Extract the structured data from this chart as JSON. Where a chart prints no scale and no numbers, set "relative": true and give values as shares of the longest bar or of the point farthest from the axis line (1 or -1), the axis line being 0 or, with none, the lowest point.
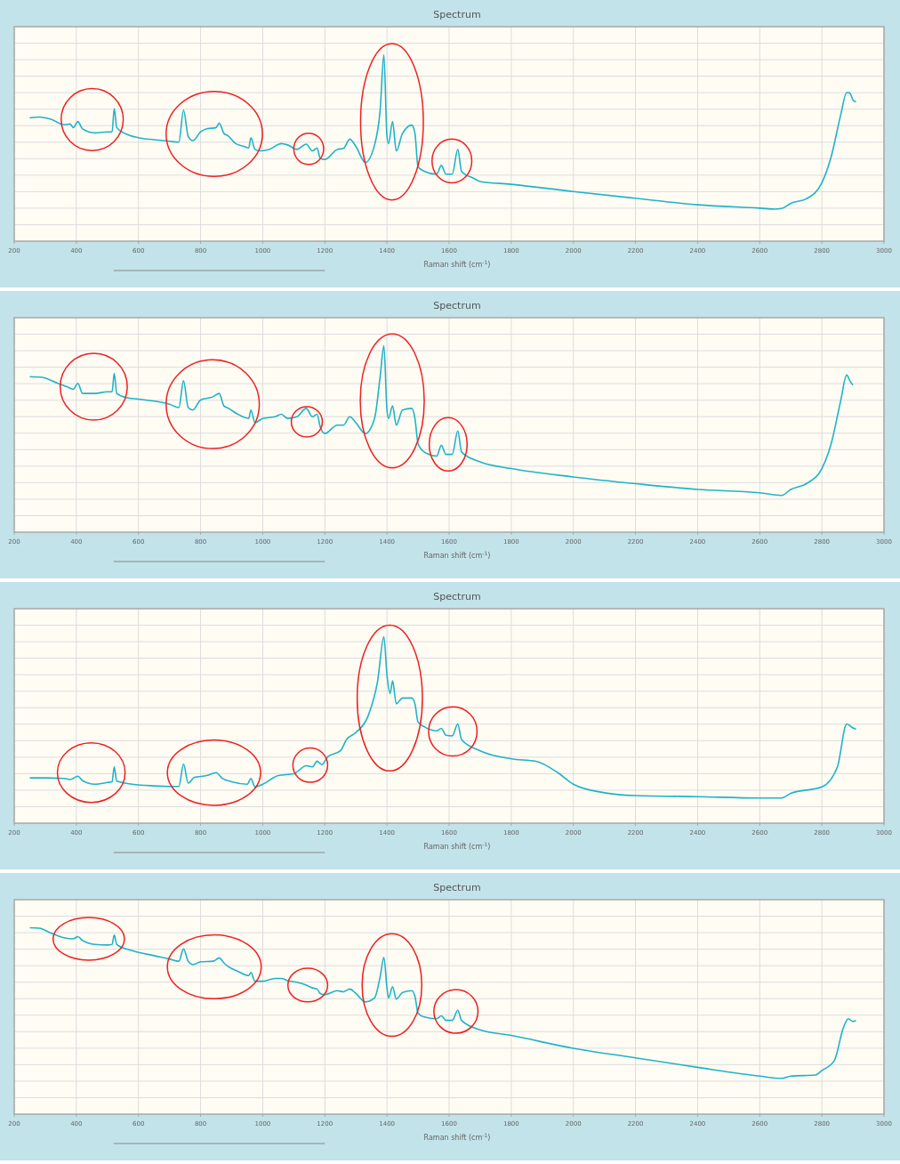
{
  "chart_data": [
    {
      "type": "line",
      "title": "Spectrum",
      "xlabel": "Raman shift (cm$^{-1}$)",
      "relative": true,
      "xlim": [
        200,
        3000
      ],
      "xticks": [
        200,
        400,
        600,
        800,
        1000,
        1200,
        1400,
        1600,
        1800,
        2000,
        2200,
        2400,
        2600,
        2800,
        3000
      ],
      "grid": true,
      "color": "#1fb3c8",
      "x": [
        250,
        280,
        320,
        360,
        380,
        390,
        405,
        420,
        460,
        500,
        515,
        522,
        530,
        560,
        600,
        650,
        700,
        730,
        745,
        760,
        775,
        800,
        820,
        850,
        860,
        875,
        890,
        910,
        940,
        955,
        962,
        975,
        990,
        1020,
        1060,
        1080,
        1110,
        1140,
        1160,
        1175,
        1185,
        1200,
        1240,
        1260,
        1280,
        1300,
        1330,
        1360,
        1378,
        1390,
        1400,
        1405,
        1418,
        1430,
        1450,
        1480,
        1490,
        1500,
        1520,
        1560,
        1575,
        1590,
        1610,
        1628,
        1640,
        1680,
        1700,
        1800,
        2000,
        2200,
        2400,
        2600,
        2650,
        2670,
        2700,
        2750,
        2800,
        2830,
        2860,
        2880,
        2890,
        2900,
        2910
      ],
      "values": [
        0.661,
        0.666,
        0.653,
        0.625,
        0.628,
        0.609,
        0.641,
        0.602,
        0.581,
        0.586,
        0.586,
        0.711,
        0.609,
        0.575,
        0.555,
        0.544,
        0.536,
        0.531,
        0.703,
        0.563,
        0.539,
        0.586,
        0.602,
        0.609,
        0.633,
        0.578,
        0.563,
        0.527,
        0.508,
        0.5,
        0.555,
        0.492,
        0.484,
        0.492,
        0.523,
        0.516,
        0.492,
        0.52,
        0.484,
        0.5,
        0.445,
        0.438,
        0.492,
        0.497,
        0.547,
        0.508,
        0.422,
        0.516,
        0.703,
        1,
        0.563,
        0.523,
        0.641,
        0.484,
        0.578,
        0.622,
        0.578,
        0.398,
        0.375,
        0.359,
        0.406,
        0.359,
        0.359,
        0.492,
        0.375,
        0.336,
        0.32,
        0.305,
        0.266,
        0.23,
        0.195,
        0.177,
        0.172,
        0.175,
        0.203,
        0.227,
        0.313,
        0.453,
        0.672,
        0.797,
        0.794,
        0.758,
        0.747
      ]
    },
    {
      "type": "line",
      "title": "Spectrum",
      "xlabel": "Raman shift (cm$^{-1}$)",
      "relative": true,
      "xlim": [
        200,
        3000
      ],
      "xticks": [
        200,
        400,
        600,
        800,
        1000,
        1200,
        1400,
        1600,
        1800,
        2000,
        2200,
        2400,
        2600,
        2800,
        3000
      ],
      "grid": true,
      "color": "#1fb3c8",
      "x": [
        250,
        290,
        340,
        370,
        390,
        405,
        420,
        460,
        500,
        515,
        522,
        530,
        560,
        600,
        700,
        730,
        745,
        760,
        775,
        800,
        840,
        860,
        875,
        890,
        920,
        955,
        962,
        975,
        1000,
        1040,
        1060,
        1080,
        1110,
        1140,
        1160,
        1175,
        1185,
        1200,
        1240,
        1260,
        1280,
        1300,
        1330,
        1360,
        1378,
        1390,
        1400,
        1405,
        1418,
        1430,
        1450,
        1480,
        1490,
        1500,
        1520,
        1560,
        1575,
        1590,
        1610,
        1628,
        1640,
        1700,
        1800,
        2000,
        2200,
        2400,
        2600,
        2670,
        2700,
        2750,
        2800,
        2830,
        2860,
        2880,
        2890,
        2900
      ],
      "values": [
        0.834,
        0.83,
        0.798,
        0.78,
        0.767,
        0.798,
        0.744,
        0.744,
        0.753,
        0.753,
        0.852,
        0.744,
        0.722,
        0.713,
        0.686,
        0.668,
        0.812,
        0.668,
        0.655,
        0.709,
        0.726,
        0.744,
        0.677,
        0.664,
        0.632,
        0.61,
        0.655,
        0.587,
        0.61,
        0.619,
        0.632,
        0.61,
        0.619,
        0.664,
        0.619,
        0.632,
        0.565,
        0.529,
        0.574,
        0.574,
        0.619,
        0.587,
        0.529,
        0.61,
        0.834,
        1,
        0.655,
        0.61,
        0.677,
        0.574,
        0.655,
        0.664,
        0.61,
        0.475,
        0.43,
        0.408,
        0.466,
        0.417,
        0.417,
        0.543,
        0.43,
        0.377,
        0.341,
        0.296,
        0.26,
        0.229,
        0.211,
        0.197,
        0.229,
        0.26,
        0.341,
        0.475,
        0.7,
        0.843,
        0.812,
        0.789
      ]
    },
    {
      "type": "line",
      "title": "Spectrum",
      "xlabel": "Raman shift (cm$^{-1}$)",
      "relative": true,
      "xlim": [
        200,
        3000
      ],
      "xticks": [
        200,
        400,
        600,
        800,
        1000,
        1200,
        1400,
        1600,
        1800,
        2000,
        2200,
        2400,
        2600,
        2800,
        3000
      ],
      "grid": true,
      "color": "#1fb3c8",
      "x": [
        250,
        300,
        360,
        380,
        405,
        420,
        460,
        500,
        515,
        522,
        530,
        580,
        650,
        700,
        730,
        745,
        760,
        780,
        820,
        850,
        870,
        900,
        950,
        962,
        975,
        1000,
        1050,
        1100,
        1140,
        1160,
        1175,
        1190,
        1210,
        1250,
        1270,
        1300,
        1340,
        1370,
        1390,
        1400,
        1410,
        1418,
        1430,
        1450,
        1480,
        1490,
        1500,
        1520,
        1560,
        1575,
        1590,
        1610,
        1628,
        1640,
        1700,
        1800,
        1880,
        1950,
        2000,
        2100,
        2200,
        2400,
        2600,
        2670,
        2700,
        2800,
        2850,
        2880,
        2900,
        2910
      ],
      "values": [
        0.243,
        0.243,
        0.24,
        0.234,
        0.252,
        0.228,
        0.209,
        0.218,
        0.222,
        0.302,
        0.225,
        0.209,
        0.2,
        0.197,
        0.197,
        0.317,
        0.215,
        0.246,
        0.255,
        0.271,
        0.24,
        0.222,
        0.209,
        0.24,
        0.194,
        0.209,
        0.255,
        0.265,
        0.308,
        0.302,
        0.332,
        0.314,
        0.357,
        0.388,
        0.449,
        0.486,
        0.578,
        0.763,
        1,
        0.794,
        0.695,
        0.763,
        0.64,
        0.671,
        0.671,
        0.64,
        0.542,
        0.517,
        0.495,
        0.508,
        0.471,
        0.468,
        0.532,
        0.449,
        0.388,
        0.345,
        0.332,
        0.271,
        0.209,
        0.163,
        0.148,
        0.142,
        0.135,
        0.135,
        0.16,
        0.194,
        0.302,
        0.532,
        0.511,
        0.505
      ]
    },
    {
      "type": "line",
      "title": "Spectrum",
      "xlabel": "Raman shift (cm$^{-1}$)",
      "relative": true,
      "xlim": [
        200,
        3000
      ],
      "xticks": [
        200,
        400,
        600,
        800,
        1000,
        1200,
        1400,
        1600,
        1800,
        2000,
        2200,
        2400,
        2600,
        2800,
        3000
      ],
      "grid": true,
      "color": "#1fb3c8",
      "x": [
        250,
        280,
        320,
        360,
        390,
        405,
        420,
        460,
        500,
        515,
        522,
        530,
        580,
        650,
        700,
        730,
        745,
        760,
        775,
        800,
        840,
        860,
        875,
        890,
        920,
        955,
        962,
        975,
        1000,
        1040,
        1060,
        1080,
        1110,
        1140,
        1160,
        1175,
        1185,
        1200,
        1240,
        1260,
        1280,
        1300,
        1330,
        1360,
        1378,
        1390,
        1400,
        1405,
        1418,
        1430,
        1450,
        1480,
        1490,
        1500,
        1520,
        1560,
        1575,
        1590,
        1610,
        1628,
        1640,
        1700,
        1800,
        2000,
        2200,
        2400,
        2600,
        2670,
        2700,
        2780,
        2800,
        2840,
        2870,
        2885,
        2900,
        2910
      ],
      "values": [
        1,
        0.997,
        0.97,
        0.946,
        0.94,
        0.952,
        0.931,
        0.91,
        0.907,
        0.91,
        0.961,
        0.91,
        0.877,
        0.85,
        0.832,
        0.82,
        0.886,
        0.82,
        0.802,
        0.817,
        0.82,
        0.838,
        0.811,
        0.79,
        0.766,
        0.743,
        0.76,
        0.713,
        0.713,
        0.728,
        0.728,
        0.716,
        0.707,
        0.692,
        0.677,
        0.671,
        0.647,
        0.641,
        0.662,
        0.656,
        0.671,
        0.647,
        0.602,
        0.623,
        0.737,
        0.841,
        0.677,
        0.623,
        0.683,
        0.617,
        0.653,
        0.662,
        0.632,
        0.542,
        0.521,
        0.512,
        0.527,
        0.503,
        0.503,
        0.557,
        0.503,
        0.452,
        0.422,
        0.353,
        0.302,
        0.251,
        0.204,
        0.192,
        0.204,
        0.21,
        0.234,
        0.287,
        0.467,
        0.512,
        0.497,
        0.503
      ]
    }
  ]
}
